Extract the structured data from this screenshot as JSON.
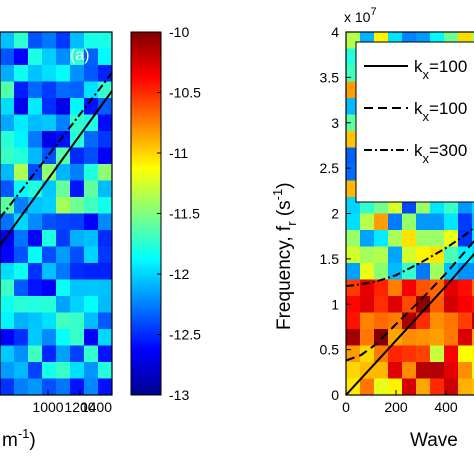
{
  "chart_data": [
    {
      "type": "heatmap",
      "panel_label": "(a)",
      "x_tick_labels": [
        "1000",
        "1200",
        "1400"
      ],
      "x_tick_values": [
        1000,
        1200,
        1400
      ],
      "x_axis_partial_label": "m",
      "x_axis_partial_label_sup": "-1",
      "x_axis_partial_label_tail": ")",
      "xlim": [
        700,
        1400
      ],
      "ylim": [
        0,
        40000000
      ],
      "lines": [
        {
          "style": "solid",
          "x": [
            700,
            1400
          ],
          "y": [
            16500000,
            33500000
          ]
        },
        {
          "style": "dash-dot",
          "x": [
            700,
            1400
          ],
          "y": [
            19500000,
            35500000
          ]
        }
      ],
      "colorbar": {
        "tick_values": [
          -10,
          -10.5,
          -11,
          -11.5,
          -12,
          -12.5,
          -13
        ],
        "tick_labels": [
          "-10",
          "-10.5",
          "-11",
          "-11.5",
          "-12",
          "-12.5",
          "-13"
        ],
        "range": [
          -13,
          -10
        ],
        "colormap": "jet"
      }
    },
    {
      "type": "heatmap",
      "y_exponent_prefix": "x 10",
      "y_exponent_sup": "7",
      "ylabel": "Frequency, f",
      "ylabel_sub": "r",
      "ylabel_units": " (s",
      "ylabel_units_sup": "-1",
      "ylabel_units_tail": ")",
      "xlabel_partial": "Wave",
      "ylim": [
        0,
        4
      ],
      "y_tick_values": [
        0,
        0.5,
        1,
        1.5,
        2,
        2.5,
        3,
        3.5,
        4
      ],
      "y_tick_labels": [
        "0",
        "0.5",
        "1",
        "1.5",
        "2",
        "2.5",
        "3",
        "3.5",
        "4"
      ],
      "xlim": [
        0,
        560
      ],
      "x_tick_values": [
        0,
        200,
        400
      ],
      "x_tick_labels": [
        "0",
        "200",
        "400"
      ],
      "legend": [
        {
          "style": "solid",
          "base": "k",
          "sub": "x",
          "value": "=100"
        },
        {
          "style": "dashed",
          "base": "k",
          "sub": "x",
          "value": "=100"
        },
        {
          "style": "dash-dot",
          "base": "k",
          "sub": "x",
          "value": "=300"
        }
      ],
      "lines": [
        {
          "style": "solid",
          "x": [
            0,
            40,
            100,
            200,
            300,
            400,
            470,
            560
          ],
          "y": [
            0.0,
            0.12,
            0.3,
            0.6,
            0.9,
            1.2,
            1.42,
            1.7
          ]
        },
        {
          "style": "dashed",
          "x": [
            0,
            60,
            120,
            200,
            300,
            400,
            470,
            560
          ],
          "y": [
            0.38,
            0.44,
            0.56,
            0.78,
            1.05,
            1.34,
            1.56,
            1.85
          ]
        },
        {
          "style": "dash-dot",
          "x": [
            0,
            60,
            120,
            200,
            300,
            400,
            470,
            560
          ],
          "y": [
            1.2,
            1.22,
            1.25,
            1.32,
            1.46,
            1.62,
            1.75,
            1.95
          ]
        }
      ]
    }
  ]
}
